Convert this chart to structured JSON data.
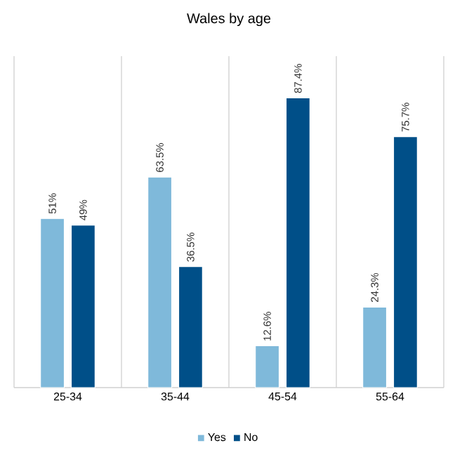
{
  "chart_data": {
    "type": "bar",
    "title": "Wales by age",
    "categories": [
      "25-34",
      "35-44",
      "45-54",
      "55-64"
    ],
    "series": [
      {
        "name": "Yes",
        "color": "#7fb9da",
        "values": [
          51,
          63.5,
          12.6,
          24.3
        ],
        "value_labels": [
          "51%",
          "63.5%",
          "12.6%",
          "24.3%"
        ]
      },
      {
        "name": "No",
        "color": "#004f88",
        "values": [
          49,
          36.5,
          87.4,
          75.7
        ],
        "value_labels": [
          "49%",
          "36.5%",
          "87.4%",
          "75.7%"
        ]
      }
    ],
    "ylim": [
      0,
      100
    ],
    "grid": "x",
    "legend": "bottom"
  }
}
